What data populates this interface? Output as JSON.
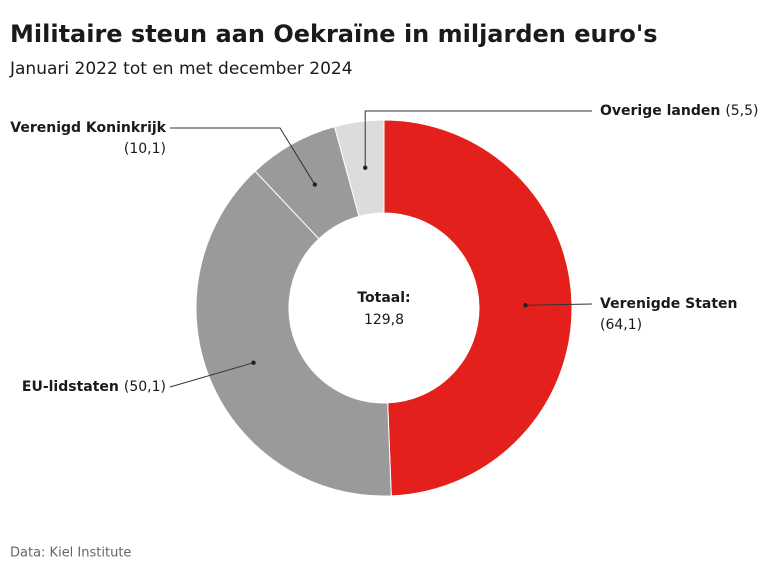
{
  "chart_data": {
    "type": "donut",
    "title": "Militaire steun aan Oekraïne in miljarden euro's",
    "subtitle": "Januari 2022 tot en met december 2024",
    "categories": [
      "Verenigde Staten",
      "EU-lidstaten",
      "Verenigd Koninkrijk",
      "Overige landen"
    ],
    "values": [
      64.1,
      50.1,
      10.1,
      5.5
    ],
    "value_labels": [
      "(64,1)",
      "(50,1)",
      "(10,1)",
      "(5,5)"
    ],
    "colors": [
      "#e3201b",
      "#9a9a9a",
      "#9a9a9a",
      "#dcdcdc"
    ],
    "center_title": "Totaal:",
    "center_text": "129,8",
    "source": "Data: Kiel Institute"
  }
}
